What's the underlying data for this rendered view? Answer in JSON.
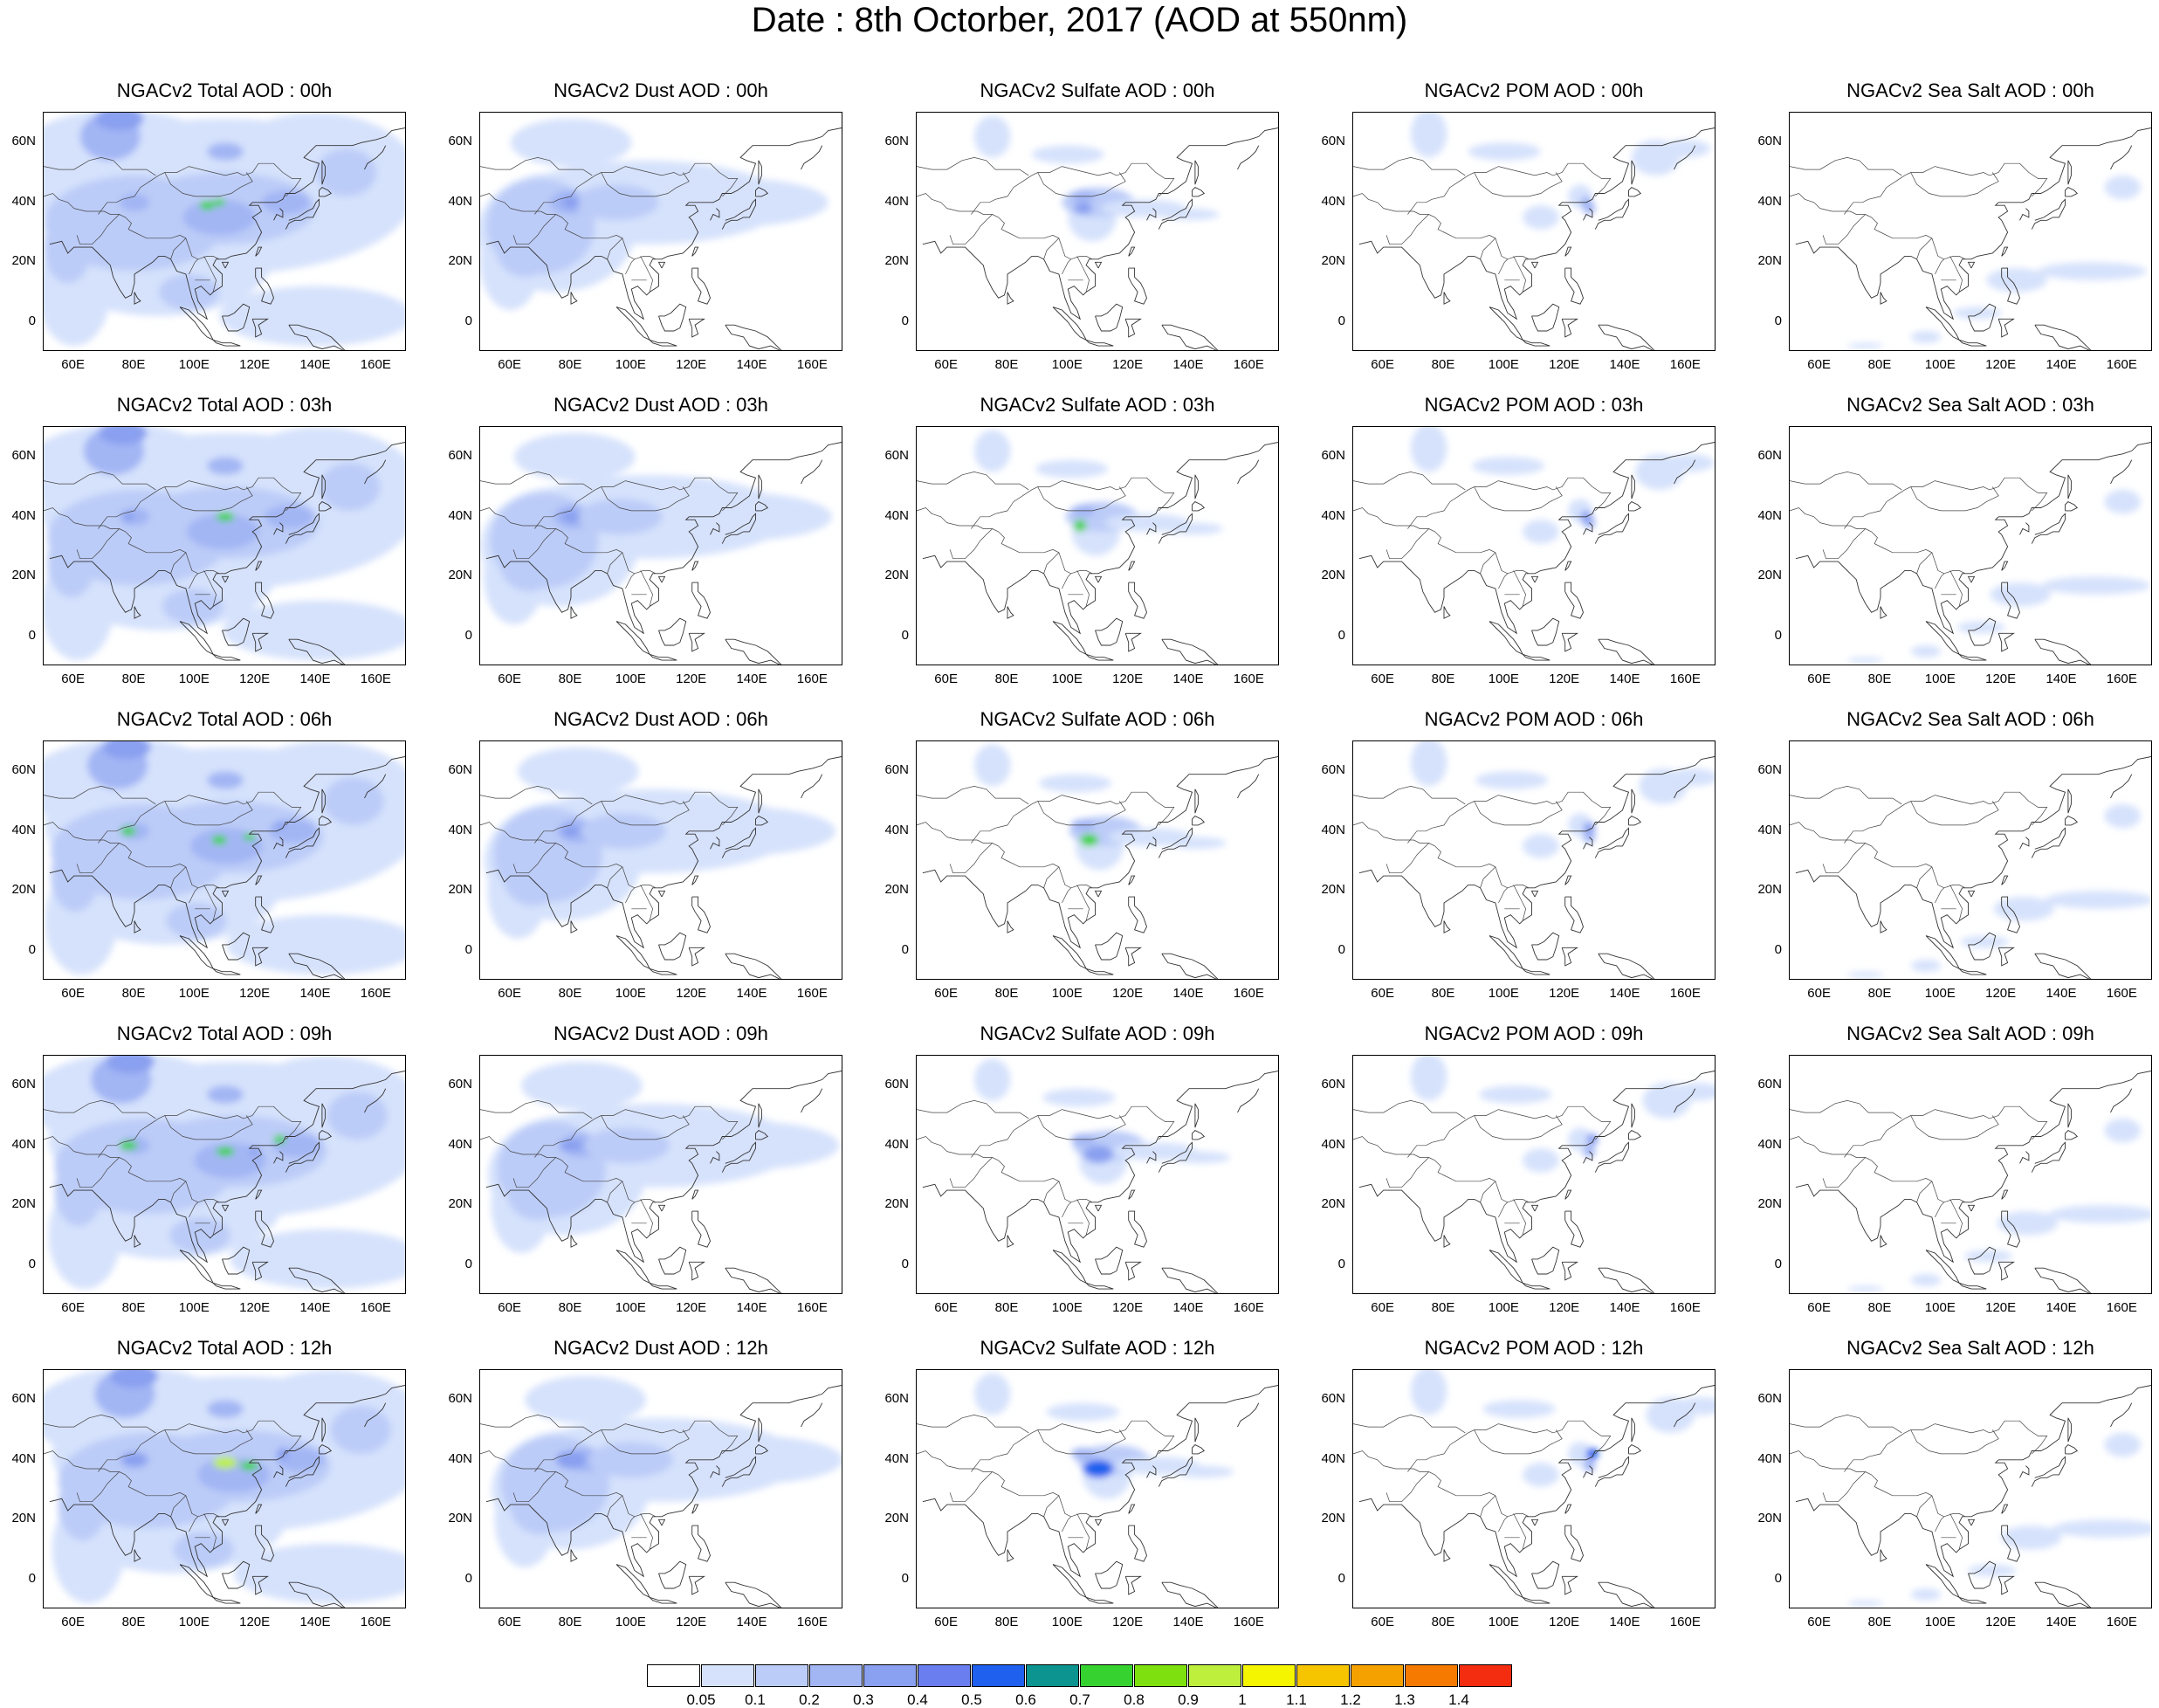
{
  "title": "Date : 8th Octorber, 2017 (AOD at 550nm)",
  "xticks": [
    "60E",
    "80E",
    "100E",
    "120E",
    "140E",
    "160E"
  ],
  "yticks": [
    "60N",
    "40N",
    "20N",
    "0"
  ],
  "panel_titles": [
    [
      "NGACv2 Total AOD : 00h",
      "NGACv2 Dust AOD : 00h",
      "NGACv2 Sulfate AOD : 00h",
      "NGACv2 POM AOD : 00h",
      "NGACv2 Sea Salt AOD : 00h"
    ],
    [
      "NGACv2 Total AOD : 03h",
      "NGACv2 Dust AOD : 03h",
      "NGACv2 Sulfate AOD : 03h",
      "NGACv2 POM AOD : 03h",
      "NGACv2 Sea Salt AOD : 03h"
    ],
    [
      "NGACv2 Total AOD : 06h",
      "NGACv2 Dust AOD : 06h",
      "NGACv2 Sulfate AOD : 06h",
      "NGACv2 POM AOD : 06h",
      "NGACv2 Sea Salt AOD : 06h"
    ],
    [
      "NGACv2 Total AOD : 09h",
      "NGACv2 Dust AOD : 09h",
      "NGACv2 Sulfate AOD : 09h",
      "NGACv2 POM AOD : 09h",
      "NGACv2 Sea Salt  AOD : 09h"
    ],
    [
      "NGACv2 Total AOD  : 12h",
      "NGACv2 Dust AOD : 12h",
      "NGACv2 Sulfate AOD : 12h",
      "NGACv2 POM  AOD : 12h",
      "NGACv2 Sea Salt  AOD : 12h"
    ]
  ],
  "colorbar": {
    "labels": [
      "0.05",
      "0.1",
      "0.2",
      "0.3",
      "0.4",
      "0.5",
      "0.6",
      "0.7",
      "0.8",
      "0.9",
      "1",
      "1.1",
      "1.2",
      "1.3",
      "1.4"
    ],
    "colors": [
      "#ffffff",
      "#d6e2fc",
      "#bcccf8",
      "#a3b6f4",
      "#8aa0f0",
      "#6a7ef0",
      "#1f60ee",
      "#0b9490",
      "#36d330",
      "#7ee00e",
      "#bdef3c",
      "#f5f500",
      "#f6c500",
      "#f5a200",
      "#f67a00",
      "#f52d10"
    ]
  },
  "map_extent": {
    "lon": [
      50,
      170
    ],
    "lat": [
      -10,
      70
    ]
  }
}
